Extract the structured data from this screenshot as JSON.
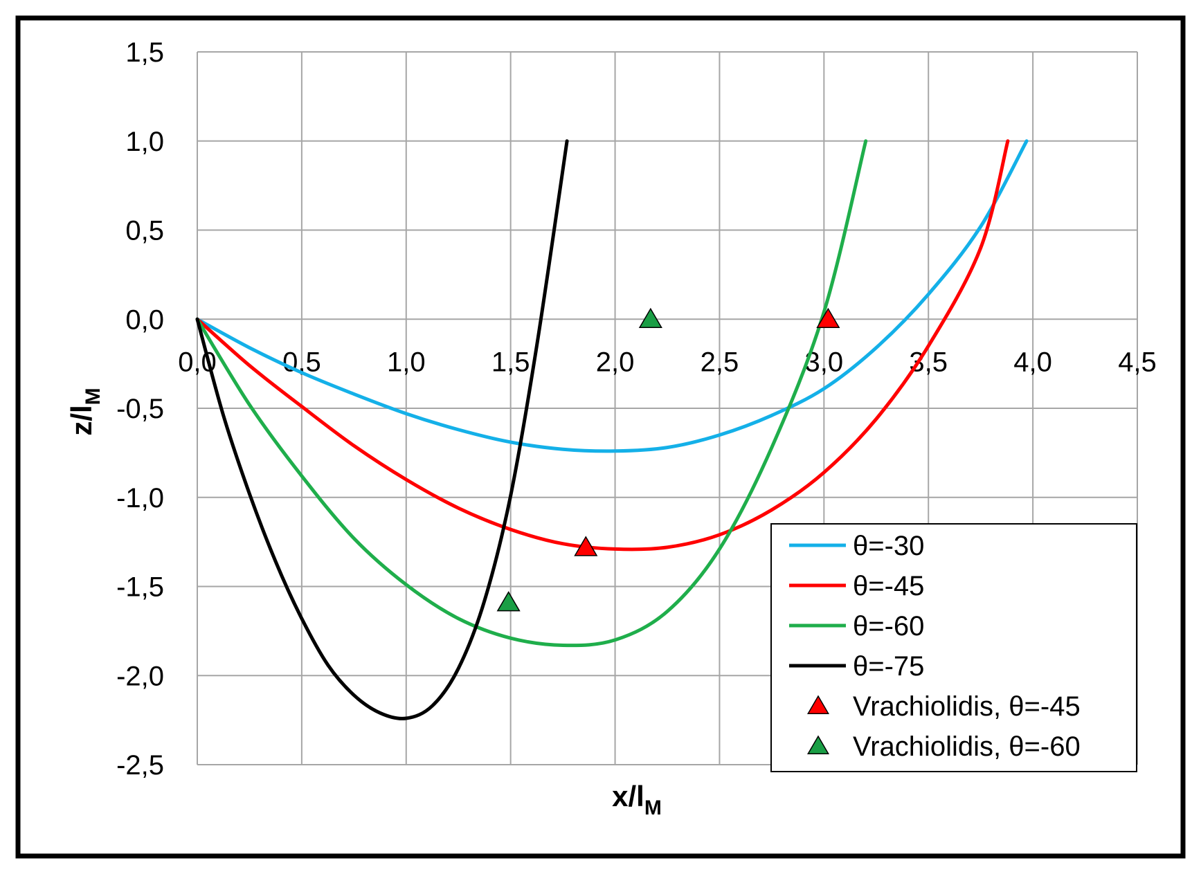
{
  "colors": {
    "theta30": "#14B0E8",
    "theta45": "#FF0000",
    "theta60": "#1FAE4B",
    "theta75": "#000000",
    "vrach45": "#FF0000",
    "vrach60": "#1A9E45",
    "grid": "#A6A6A6"
  },
  "chart_data": {
    "type": "line",
    "xlabel": {
      "main": "x/l",
      "sub": "M"
    },
    "ylabel": {
      "main": "z/l",
      "sub": "M"
    },
    "xlim": [
      0,
      4.5
    ],
    "ylim": [
      -2.5,
      1.5
    ],
    "x_ticks": [
      "0,0",
      "0,5",
      "1,0",
      "1,5",
      "2,0",
      "2,5",
      "3,0",
      "3,5",
      "4,0",
      "4,5"
    ],
    "y_ticks": [
      "1,5",
      "1,0",
      "0,5",
      "0,0",
      "-0,5",
      "-1,0",
      "-1,5",
      "-2,0",
      "-2,5"
    ],
    "grid": true,
    "legend_position": "bottom-right",
    "series": [
      {
        "name": "θ=-30",
        "kind": "line",
        "color_key": "theta30",
        "x": [
          0.0,
          0.25,
          0.5,
          0.75,
          1.0,
          1.25,
          1.5,
          1.75,
          2.0,
          2.25,
          2.5,
          2.75,
          3.0,
          3.25,
          3.5,
          3.75,
          3.97
        ],
        "y": [
          0.0,
          -0.16,
          -0.3,
          -0.42,
          -0.53,
          -0.62,
          -0.69,
          -0.73,
          -0.74,
          -0.72,
          -0.65,
          -0.54,
          -0.39,
          -0.16,
          0.14,
          0.52,
          1.0
        ]
      },
      {
        "name": "θ=-45",
        "kind": "line",
        "color_key": "theta45",
        "x": [
          0.0,
          0.25,
          0.5,
          0.75,
          1.0,
          1.25,
          1.5,
          1.75,
          2.0,
          2.25,
          2.5,
          2.75,
          3.0,
          3.25,
          3.5,
          3.75,
          3.88
        ],
        "y": [
          0.0,
          -0.26,
          -0.49,
          -0.71,
          -0.9,
          -1.06,
          -1.18,
          -1.26,
          -1.29,
          -1.28,
          -1.21,
          -1.07,
          -0.86,
          -0.56,
          -0.15,
          0.4,
          1.0
        ]
      },
      {
        "name": "θ=-60",
        "kind": "line",
        "color_key": "theta60",
        "x": [
          0.0,
          0.25,
          0.5,
          0.75,
          1.0,
          1.25,
          1.5,
          1.75,
          2.0,
          2.25,
          2.5,
          2.75,
          3.0,
          3.2
        ],
        "y": [
          0.0,
          -0.48,
          -0.88,
          -1.23,
          -1.49,
          -1.68,
          -1.79,
          -1.83,
          -1.8,
          -1.64,
          -1.29,
          -0.72,
          0.04,
          1.0
        ]
      },
      {
        "name": "θ=-75",
        "kind": "line",
        "color_key": "theta75",
        "x": [
          0.0,
          0.125,
          0.25,
          0.375,
          0.5,
          0.625,
          0.75,
          0.875,
          1.0,
          1.125,
          1.25,
          1.375,
          1.5,
          1.625,
          1.77
        ],
        "y": [
          0.0,
          -0.54,
          -0.98,
          -1.36,
          -1.68,
          -1.94,
          -2.11,
          -2.21,
          -2.24,
          -2.17,
          -1.96,
          -1.58,
          -0.99,
          -0.15,
          1.0
        ]
      },
      {
        "name": "Vrachiolidis, θ=-45",
        "kind": "marker",
        "color_key": "vrach45",
        "x": [
          1.86,
          3.02
        ],
        "y": [
          -1.28,
          0.0
        ]
      },
      {
        "name": "Vrachiolidis, θ=-60",
        "kind": "marker",
        "color_key": "vrach60",
        "x": [
          1.49,
          2.17
        ],
        "y": [
          -1.59,
          0.0
        ]
      }
    ]
  }
}
